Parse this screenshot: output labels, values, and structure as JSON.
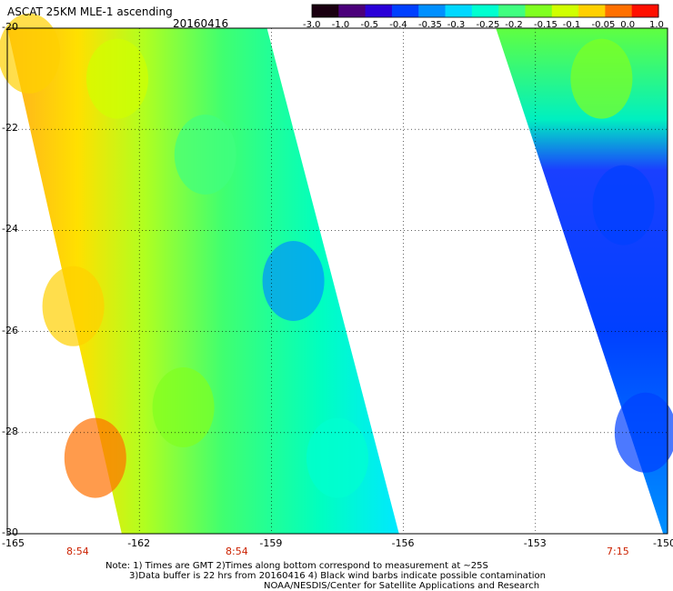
{
  "header": {
    "title": "ASCAT 25KM MLE-1 ascending",
    "date": "20160416"
  },
  "colorbar": {
    "ticks": [
      "-3.0",
      "-1.0",
      "-0.5",
      "-0.4",
      "-0.35",
      "-0.3",
      "-0.25",
      "-0.2",
      "-0.15",
      "-0.1",
      "-0.05",
      "0.0",
      "1.0"
    ],
    "colors": [
      "#1a0010",
      "#4b007a",
      "#2a00d8",
      "#0040ff",
      "#0090ff",
      "#00d8ff",
      "#00ffd0",
      "#40ff80",
      "#80ff20",
      "#d0ff00",
      "#ffd000",
      "#ff7000",
      "#ff1000"
    ]
  },
  "times": [
    "8:54",
    "8:54",
    "7:15"
  ],
  "notes": [
    "Note: 1) Times are GMT 2)Times along bottom correspond to measurement at ~25S",
    "3)Data buffer is 22 hrs from 20160416 4) Black wind barbs indicate possible contamination",
    "NOAA/NESDIS/Center for Satellite Applications and Research"
  ],
  "chart_data": {
    "type": "heatmap",
    "title": "ASCAT 25KM MLE-1 ascending",
    "date": "20160416",
    "x_ticks": [
      "-165",
      "-162",
      "-159",
      "-156",
      "-153",
      "-150"
    ],
    "y_ticks": [
      "-20",
      "-22",
      "-24",
      "-26",
      "-28",
      "-30"
    ],
    "xlim": [
      -165,
      -150
    ],
    "ylim": [
      -30,
      -20
    ],
    "grid": true,
    "swaths": [
      {
        "lon_west_edge_top": -165,
        "lon_east_edge_top": -159.1,
        "lon_west_edge_bottom": -162.4,
        "lon_east_edge_bottom": -156.1,
        "time": "8:54"
      },
      {
        "lon_west_edge_top": -153.9,
        "lon_east_edge_top": -150,
        "lon_west_edge_bottom": -150.1,
        "lon_east_edge_bottom": -150,
        "time": "7:15"
      }
    ],
    "field_samples": [
      {
        "lon": -164.5,
        "lat": -20.5,
        "value": -0.07
      },
      {
        "lon": -162.5,
        "lat": -21.0,
        "value": -0.1
      },
      {
        "lon": -160.5,
        "lat": -22.5,
        "value": -0.2
      },
      {
        "lon": -163.5,
        "lat": -25.5,
        "value": -0.05
      },
      {
        "lon": -163.0,
        "lat": -28.5,
        "value": -0.02
      },
      {
        "lon": -161.0,
        "lat": -27.5,
        "value": -0.15
      },
      {
        "lon": -158.5,
        "lat": -25.0,
        "value": -0.35
      },
      {
        "lon": -157.5,
        "lat": -28.5,
        "value": -0.28
      },
      {
        "lon": -151.5,
        "lat": -21.0,
        "value": -0.17
      },
      {
        "lon": -151.0,
        "lat": -23.5,
        "value": -0.4
      },
      {
        "lon": -150.5,
        "lat": -28.0,
        "value": -0.45
      }
    ]
  }
}
